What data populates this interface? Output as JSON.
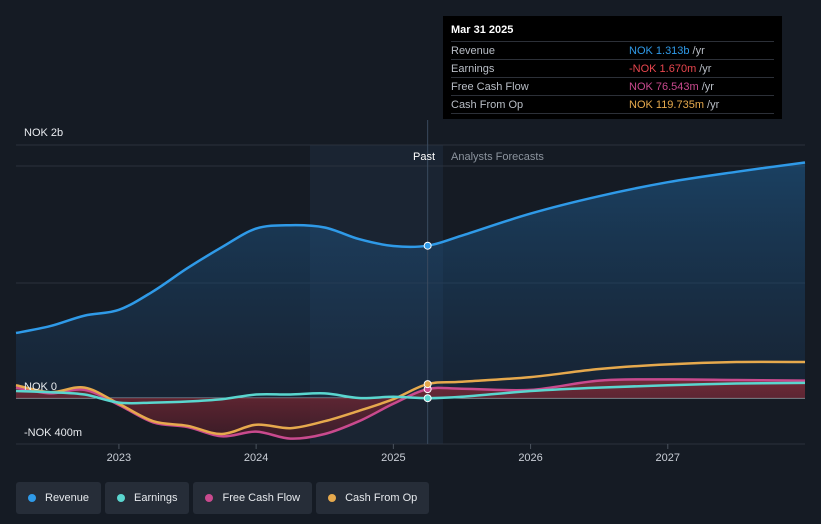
{
  "chart_data": {
    "type": "line",
    "title": "",
    "y_axis": {
      "top_label": "NOK 2b",
      "zero_label": "NOK 0",
      "bottom_label": "-NOK 400m",
      "ylim": [
        -400,
        2000
      ],
      "unit": "NOK m"
    },
    "x_ticks": [
      "2023",
      "2024",
      "2025",
      "2026",
      "2027"
    ],
    "xlim": [
      2022.25,
      2028.0
    ],
    "divider_x": 2025.25,
    "past_label": "Past",
    "forecast_label": "Analysts Forecasts",
    "series": [
      {
        "name": "Revenue",
        "color": "#2f9ae8",
        "fill": true,
        "points": [
          [
            2022.25,
            560
          ],
          [
            2022.5,
            620
          ],
          [
            2022.75,
            710
          ],
          [
            2023.0,
            760
          ],
          [
            2023.25,
            920
          ],
          [
            2023.5,
            1120
          ],
          [
            2023.75,
            1300
          ],
          [
            2024.0,
            1460
          ],
          [
            2024.25,
            1490
          ],
          [
            2024.5,
            1470
          ],
          [
            2024.75,
            1370
          ],
          [
            2025.0,
            1310
          ],
          [
            2025.25,
            1313
          ],
          [
            2025.5,
            1400
          ],
          [
            2026.0,
            1590
          ],
          [
            2026.5,
            1740
          ],
          [
            2027.0,
            1860
          ],
          [
            2027.5,
            1950
          ],
          [
            2028.0,
            2030
          ]
        ]
      },
      {
        "name": "Earnings",
        "color": "#5ad6cf",
        "fill": false,
        "points": [
          [
            2022.25,
            60
          ],
          [
            2022.5,
            50
          ],
          [
            2022.75,
            30
          ],
          [
            2023.0,
            -40
          ],
          [
            2023.25,
            -40
          ],
          [
            2023.5,
            -30
          ],
          [
            2023.75,
            -10
          ],
          [
            2024.0,
            30
          ],
          [
            2024.25,
            30
          ],
          [
            2024.5,
            40
          ],
          [
            2024.75,
            0
          ],
          [
            2025.0,
            10
          ],
          [
            2025.25,
            -1.67
          ],
          [
            2025.5,
            10
          ],
          [
            2026.0,
            60
          ],
          [
            2026.5,
            90
          ],
          [
            2027.0,
            110
          ],
          [
            2027.5,
            125
          ],
          [
            2028.0,
            130
          ]
        ]
      },
      {
        "name": "Free Cash Flow",
        "color": "#c94a8e",
        "fill": true,
        "points": [
          [
            2022.25,
            90
          ],
          [
            2022.5,
            40
          ],
          [
            2022.75,
            70
          ],
          [
            2023.0,
            -60
          ],
          [
            2023.25,
            -210
          ],
          [
            2023.5,
            -250
          ],
          [
            2023.75,
            -330
          ],
          [
            2024.0,
            -290
          ],
          [
            2024.25,
            -350
          ],
          [
            2024.5,
            -310
          ],
          [
            2024.75,
            -200
          ],
          [
            2025.0,
            -50
          ],
          [
            2025.25,
            76.543
          ],
          [
            2025.5,
            80
          ],
          [
            2026.0,
            70
          ],
          [
            2026.5,
            150
          ],
          [
            2027.0,
            160
          ],
          [
            2027.5,
            155
          ],
          [
            2028.0,
            150
          ]
        ]
      },
      {
        "name": "Cash From Op",
        "color": "#e6a94d",
        "fill": false,
        "points": [
          [
            2022.25,
            110
          ],
          [
            2022.5,
            50
          ],
          [
            2022.75,
            90
          ],
          [
            2023.0,
            -50
          ],
          [
            2023.25,
            -200
          ],
          [
            2023.5,
            -240
          ],
          [
            2023.75,
            -310
          ],
          [
            2024.0,
            -230
          ],
          [
            2024.25,
            -260
          ],
          [
            2024.5,
            -200
          ],
          [
            2024.75,
            -110
          ],
          [
            2025.0,
            -10
          ],
          [
            2025.25,
            119.735
          ],
          [
            2025.5,
            140
          ],
          [
            2026.0,
            180
          ],
          [
            2026.5,
            250
          ],
          [
            2027.0,
            290
          ],
          [
            2027.5,
            310
          ],
          [
            2028.0,
            310
          ]
        ]
      }
    ]
  },
  "tooltip": {
    "date": "Mar 31 2025",
    "rows": [
      {
        "label": "Revenue",
        "value": "NOK 1.313b",
        "unit": "/yr",
        "color": "#2f9ae8"
      },
      {
        "label": "Earnings",
        "value": "-NOK 1.670m",
        "unit": "/yr",
        "color": "#e8464e"
      },
      {
        "label": "Free Cash Flow",
        "value": "NOK 76.543m",
        "unit": "/yr",
        "color": "#c94a8e"
      },
      {
        "label": "Cash From Op",
        "value": "NOK 119.735m",
        "unit": "/yr",
        "color": "#e6a94d"
      }
    ]
  },
  "legend": [
    {
      "label": "Revenue",
      "color": "#2f9ae8"
    },
    {
      "label": "Earnings",
      "color": "#5ad6cf"
    },
    {
      "label": "Free Cash Flow",
      "color": "#c94a8e"
    },
    {
      "label": "Cash From Op",
      "color": "#e6a94d"
    }
  ]
}
